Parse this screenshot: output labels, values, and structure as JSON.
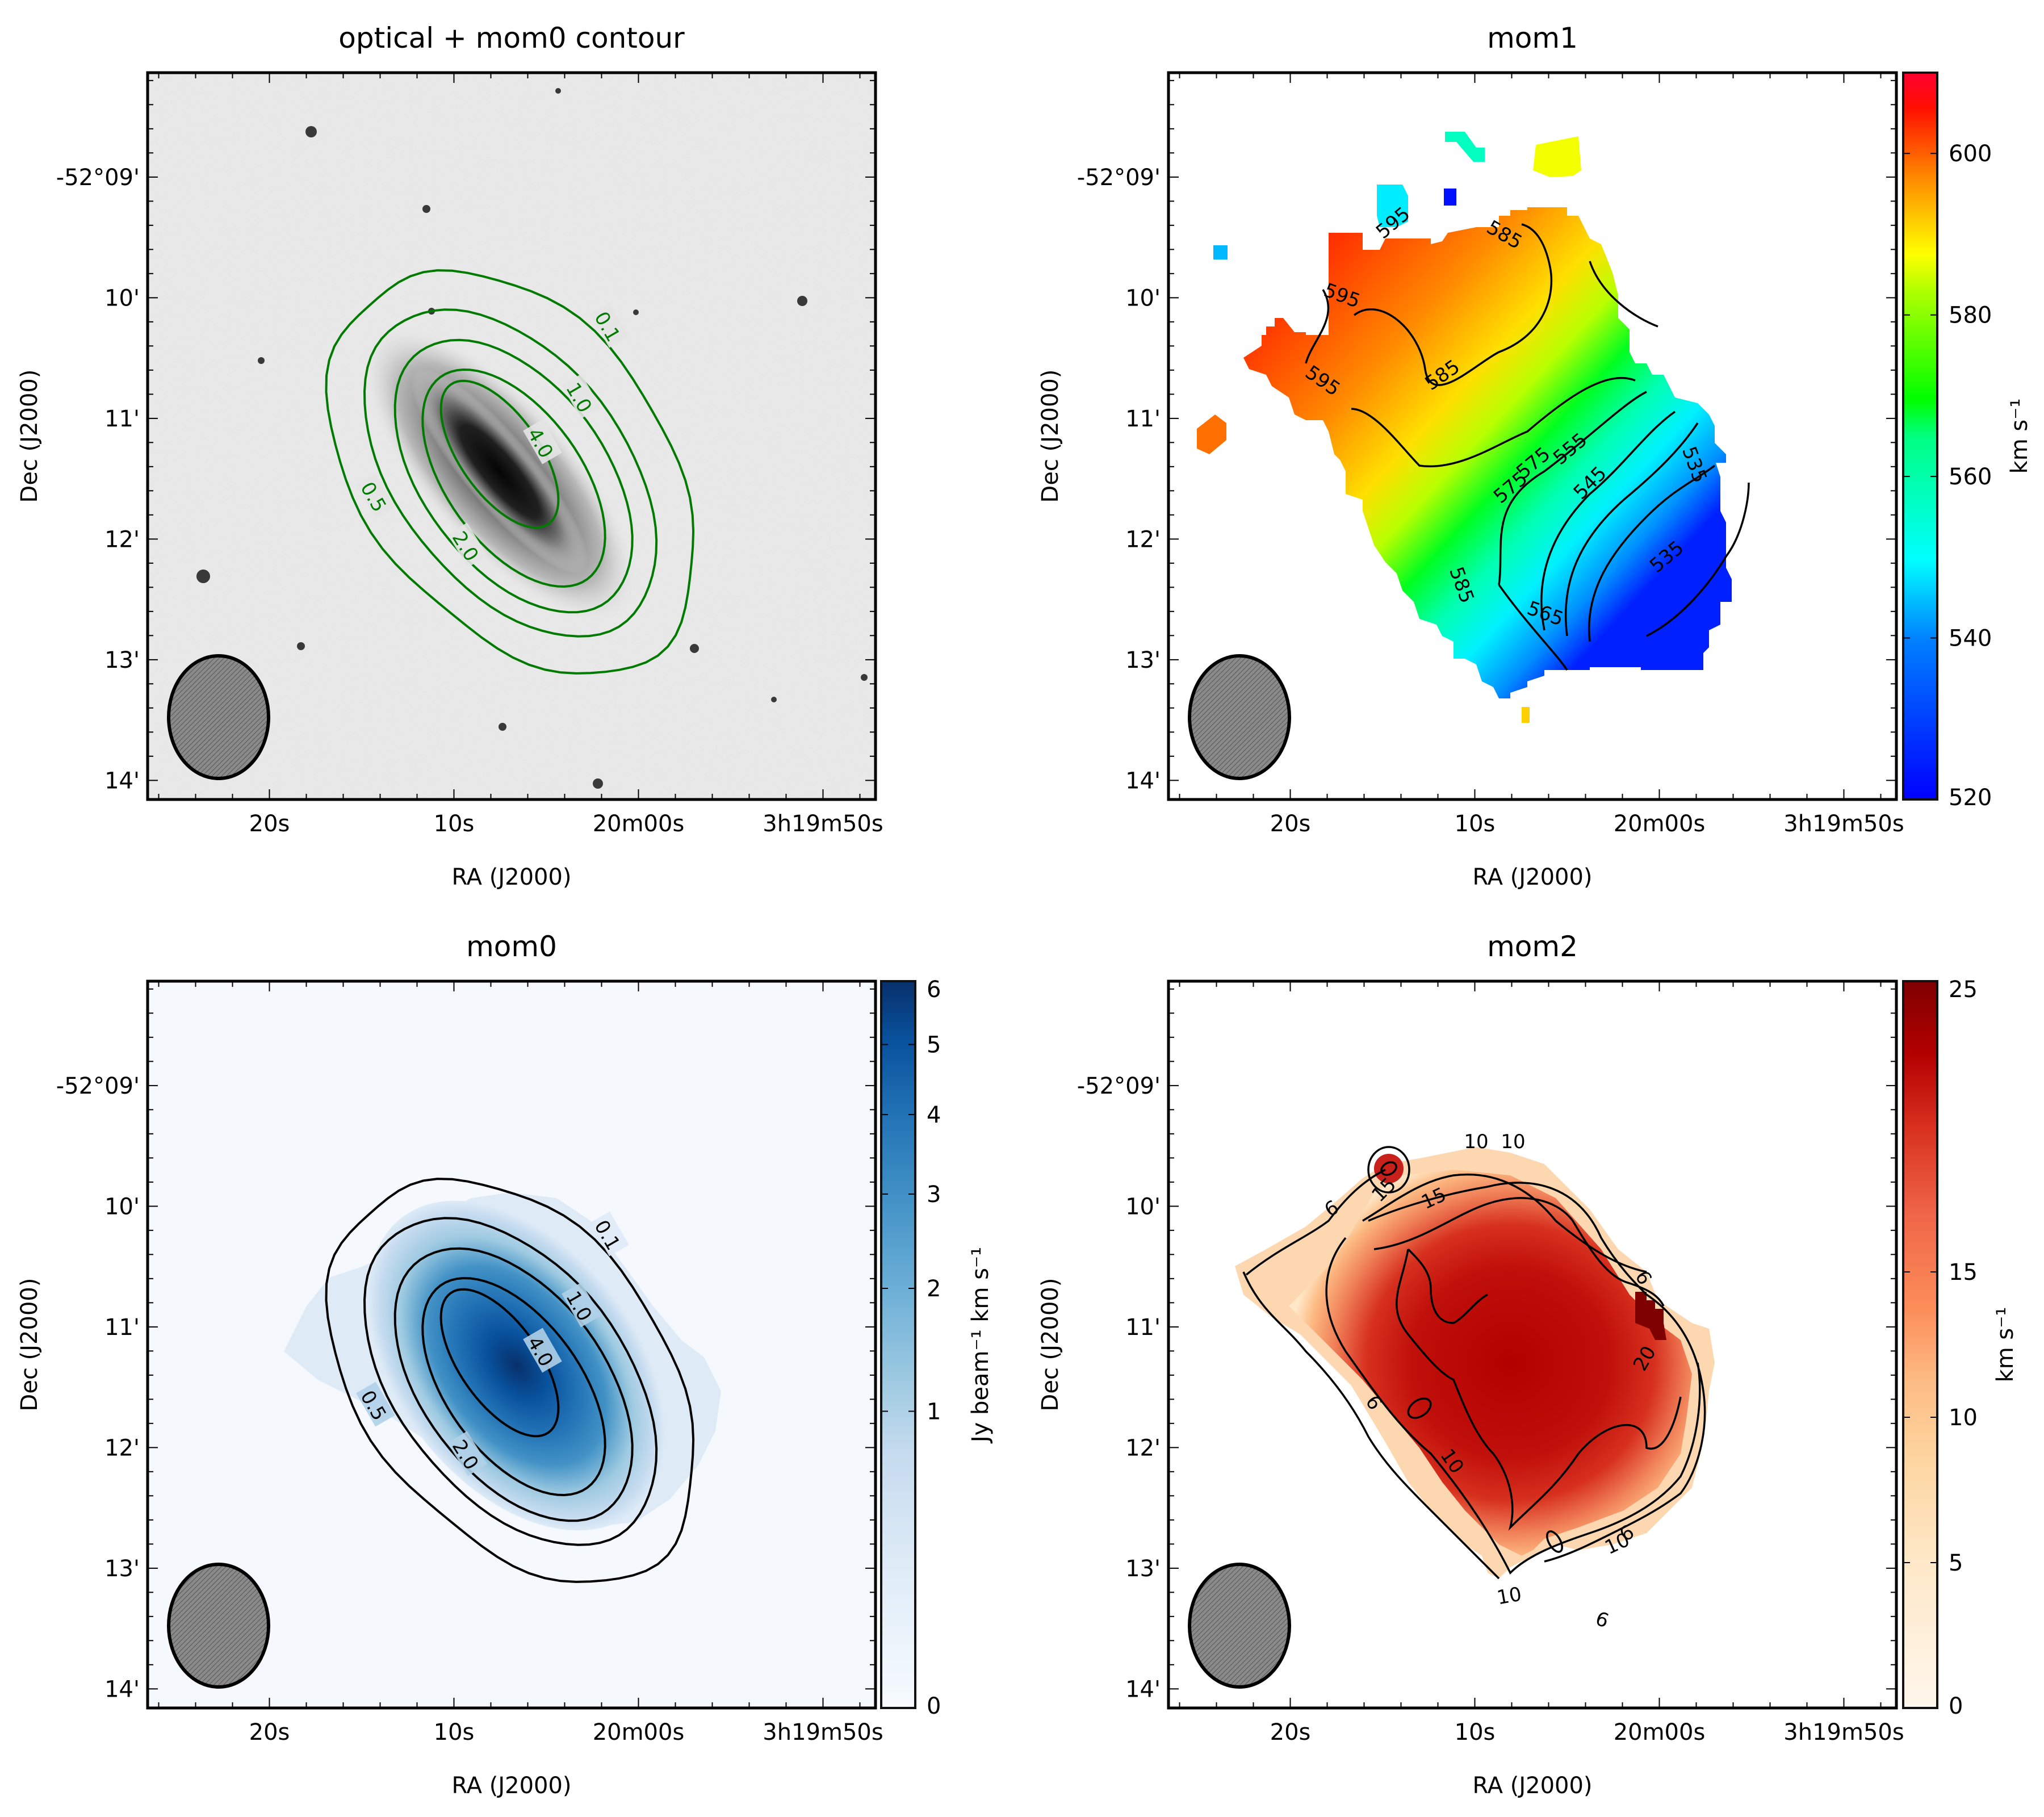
{
  "figure": {
    "panel_count": 4
  },
  "chart_data": [
    {
      "id": "optical",
      "type": "heatmap",
      "title": "optical + mom0 contour",
      "xlabel": "RA (J2000)",
      "ylabel": "Dec (J2000)",
      "x_ticks": [
        "20s",
        "10s",
        "20m00s",
        "3h19m50s"
      ],
      "x_tick_values_s": [
        20,
        10,
        0,
        -10
      ],
      "y_ticks": [
        "-52°09'",
        "10'",
        "11'",
        "12'",
        "13'",
        "14'"
      ],
      "y_tick_values_arcmin": [
        9,
        10,
        11,
        12,
        13,
        14
      ],
      "xlim_s": [
        26.6,
        -12.8
      ],
      "ylim_arcmin": [
        8.13,
        14.1
      ],
      "image": "greyscale optical",
      "contour_color": "#007a00",
      "contour_levels": [
        0.1,
        0.5,
        1.0,
        2.0,
        4.0
      ],
      "contour_labels": [
        "0.1",
        "0.5",
        "1.0",
        "2.0",
        "4.0"
      ],
      "beam": {
        "label": "beam",
        "fill": "#808080"
      },
      "colorbar": null
    },
    {
      "id": "mom1",
      "type": "heatmap",
      "title": "mom1",
      "xlabel": "RA (J2000)",
      "ylabel": "Dec (J2000)",
      "x_ticks": [
        "20s",
        "10s",
        "20m00s",
        "3h19m50s"
      ],
      "y_ticks": [
        "-52°09'",
        "10'",
        "11'",
        "12'",
        "13'",
        "14'"
      ],
      "colormap": "jet",
      "contour_color": "#000000",
      "contour_levels": [
        535,
        545,
        555,
        565,
        575,
        585,
        595
      ],
      "contour_labels": [
        "595",
        "595",
        "595",
        "585",
        "585",
        "585",
        "575",
        "575",
        "565",
        "555",
        "545",
        "535",
        "535"
      ],
      "beam": {
        "label": "beam",
        "fill": "#808080"
      },
      "colorbar": {
        "label": "km s⁻¹",
        "range": [
          520,
          610
        ],
        "ticks": [
          520,
          540,
          560,
          580,
          600
        ],
        "tick_labels": [
          "520",
          "540",
          "560",
          "580",
          "600"
        ],
        "scale": "linear"
      }
    },
    {
      "id": "mom0",
      "type": "heatmap",
      "title": "mom0",
      "xlabel": "RA (J2000)",
      "ylabel": "Dec (J2000)",
      "x_ticks": [
        "20s",
        "10s",
        "20m00s",
        "3h19m50s"
      ],
      "y_ticks": [
        "-52°09'",
        "10'",
        "11'",
        "12'",
        "13'",
        "14'"
      ],
      "colormap": "Blues",
      "contour_color": "#000000",
      "contour_levels": [
        0.1,
        0.5,
        1.0,
        2.0,
        4.0
      ],
      "contour_labels": [
        "0.1",
        "0.5",
        "1.0",
        "2.0",
        "4.0"
      ],
      "beam": {
        "label": "beam",
        "fill": "#808080"
      },
      "colorbar": {
        "label": "Jy beam⁻¹ km s⁻¹",
        "range": [
          0,
          6
        ],
        "ticks": [
          0,
          1,
          2,
          3,
          4,
          5,
          6
        ],
        "tick_labels": [
          "0",
          "1",
          "2",
          "3",
          "4",
          "5",
          "6"
        ],
        "scale": "sqrt"
      }
    },
    {
      "id": "mom2",
      "type": "heatmap",
      "title": "mom2",
      "xlabel": "RA (J2000)",
      "ylabel": "Dec (J2000)",
      "x_ticks": [
        "20s",
        "10s",
        "20m00s",
        "3h19m50s"
      ],
      "y_ticks": [
        "-52°09'",
        "10'",
        "11'",
        "12'",
        "13'",
        "14'"
      ],
      "colormap": "OrRd",
      "contour_color": "#000000",
      "contour_levels": [
        6,
        10,
        15,
        20
      ],
      "contour_labels": [
        "6",
        "6",
        "6",
        "6",
        "6",
        "10",
        "10",
        "10",
        "10",
        "10",
        "15",
        "15",
        "20"
      ],
      "beam": {
        "label": "beam",
        "fill": "#808080"
      },
      "colorbar": {
        "label": "km s⁻¹",
        "range": [
          0,
          25
        ],
        "ticks": [
          0,
          5,
          10,
          15,
          25
        ],
        "tick_labels": [
          "0",
          "5",
          "10",
          "15",
          "25"
        ],
        "scale": "linear"
      }
    }
  ]
}
